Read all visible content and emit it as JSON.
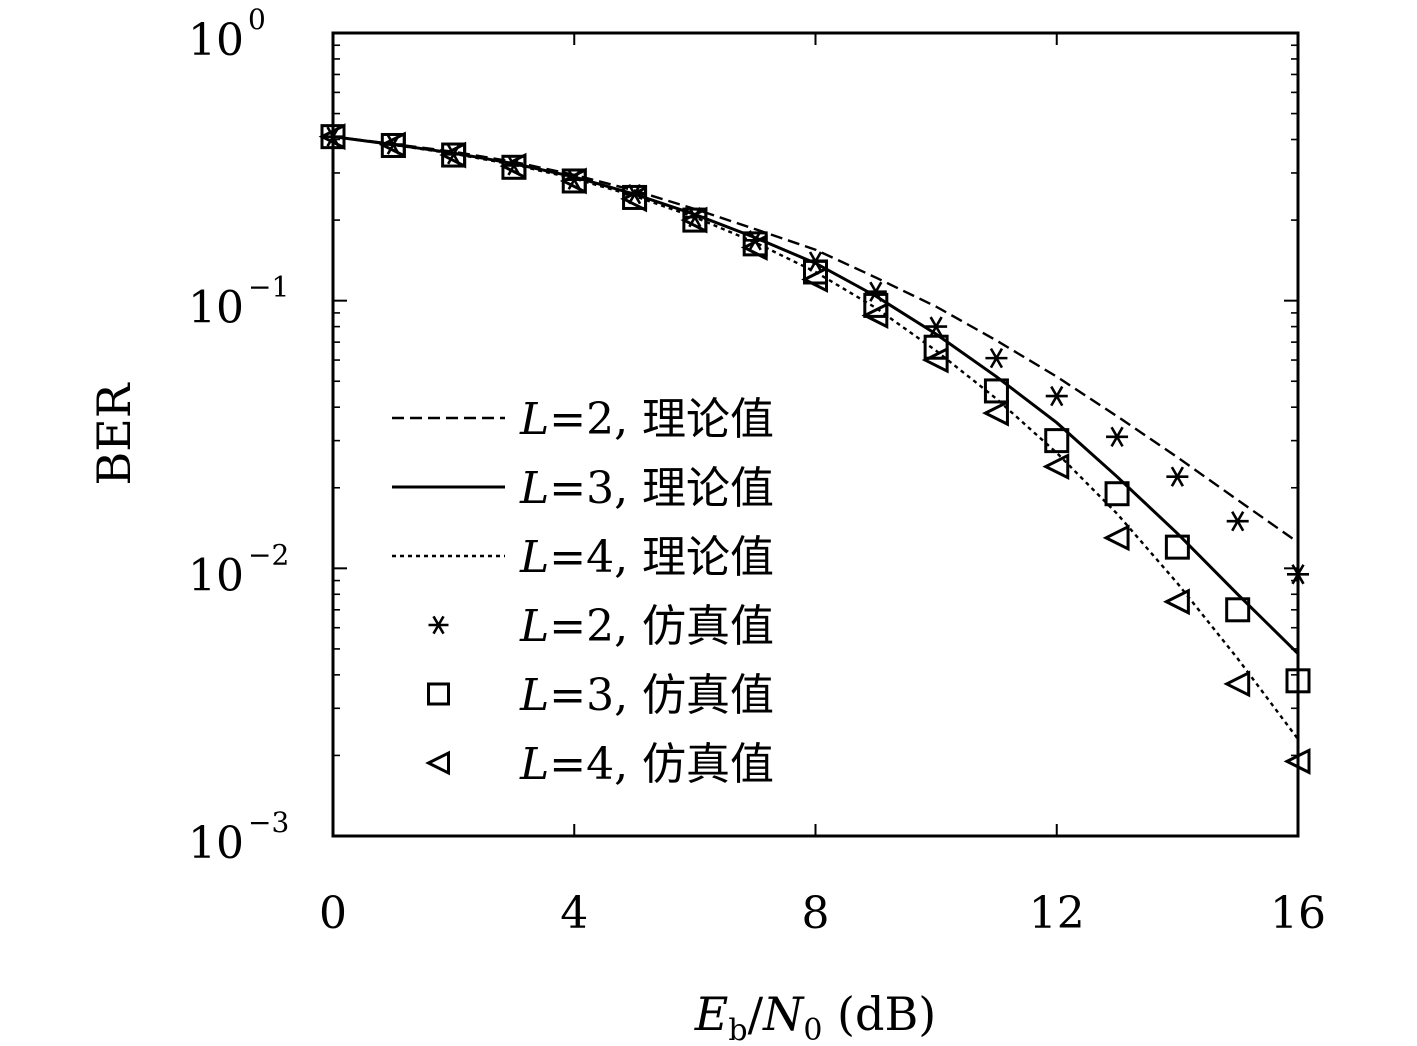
{
  "chart_data": {
    "type": "line",
    "title": "",
    "xlabel": {
      "e": "E",
      "e_sub": "b",
      "slash": "/",
      "n": "N",
      "n_sub": "0",
      "unit": " (dB)"
    },
    "ylabel": "BER",
    "xlim": [
      0,
      16
    ],
    "ylim": [
      0.001,
      1
    ],
    "yscale": "log",
    "x_ticks": [
      0,
      4,
      8,
      12,
      16
    ],
    "x_tick_labels": [
      "0",
      "4",
      "8",
      "12",
      "16"
    ],
    "y_ticks": [
      {
        "value": 1,
        "base": "10",
        "exp": "0"
      },
      {
        "value": 0.1,
        "base": "10",
        "exp": "−1"
      },
      {
        "value": 0.01,
        "base": "10",
        "exp": "−2"
      },
      {
        "value": 0.001,
        "base": "10",
        "exp": "−3"
      }
    ],
    "grid": false,
    "legend_position": "left",
    "series": [
      {
        "name": "L=2, 理论值",
        "var": "L",
        "eq": "=2, 理论值",
        "style": "dashed",
        "marker": "none",
        "x": [
          0,
          1,
          2,
          3,
          4,
          5,
          6,
          7,
          8,
          9,
          10,
          11,
          12,
          13,
          14,
          15,
          16
        ],
        "y": [
          0.41,
          0.385,
          0.36,
          0.33,
          0.295,
          0.258,
          0.22,
          0.185,
          0.155,
          0.122,
          0.095,
          0.071,
          0.052,
          0.037,
          0.026,
          0.018,
          0.0125
        ]
      },
      {
        "name": "L=3, 理论值",
        "var": "L",
        "eq": "=3, 理论值",
        "style": "solid",
        "marker": "none",
        "x": [
          0,
          1,
          2,
          3,
          4,
          5,
          6,
          7,
          8,
          9,
          10,
          11,
          12,
          13,
          14,
          15,
          16
        ],
        "y": [
          0.41,
          0.383,
          0.356,
          0.325,
          0.29,
          0.25,
          0.21,
          0.172,
          0.138,
          0.104,
          0.075,
          0.052,
          0.035,
          0.022,
          0.0135,
          0.008,
          0.0048
        ]
      },
      {
        "name": "L=4, 理论值",
        "var": "L",
        "eq": "=4, 理论值",
        "style": "dotted",
        "marker": "none",
        "x": [
          0,
          1,
          2,
          3,
          4,
          5,
          6,
          7,
          8,
          9,
          10,
          11,
          12,
          13,
          14,
          15,
          16
        ],
        "y": [
          0.41,
          0.382,
          0.354,
          0.322,
          0.286,
          0.246,
          0.205,
          0.165,
          0.128,
          0.094,
          0.065,
          0.043,
          0.027,
          0.016,
          0.0088,
          0.0046,
          0.0023
        ]
      },
      {
        "name": "L=2, 仿真值",
        "var": "L",
        "eq": "=2, 仿真值",
        "style": "none",
        "marker": "asterisk",
        "x": [
          0,
          1,
          2,
          3,
          4,
          5,
          6,
          7,
          8,
          9,
          10,
          11,
          12,
          13,
          14,
          15,
          16
        ],
        "y": [
          0.41,
          0.383,
          0.352,
          0.32,
          0.283,
          0.25,
          0.205,
          0.168,
          0.14,
          0.108,
          0.08,
          0.061,
          0.044,
          0.031,
          0.022,
          0.015,
          0.0095
        ]
      },
      {
        "name": "L=3, 仿真值",
        "var": "L",
        "eq": "=3, 仿真值",
        "style": "none",
        "marker": "square",
        "x": [
          0,
          1,
          2,
          3,
          4,
          5,
          6,
          7,
          8,
          9,
          10,
          11,
          12,
          13,
          14,
          15,
          16
        ],
        "y": [
          0.41,
          0.38,
          0.35,
          0.315,
          0.28,
          0.243,
          0.2,
          0.163,
          0.128,
          0.096,
          0.067,
          0.046,
          0.03,
          0.019,
          0.012,
          0.007,
          0.0038
        ]
      },
      {
        "name": "L=4, 仿真值",
        "var": "L",
        "eq": "=4, 仿真值",
        "style": "none",
        "marker": "triangle-left",
        "x": [
          0,
          1,
          2,
          3,
          4,
          5,
          6,
          7,
          8,
          9,
          10,
          11,
          12,
          13,
          14,
          15,
          16
        ],
        "y": [
          0.41,
          0.382,
          0.35,
          0.318,
          0.28,
          0.24,
          0.2,
          0.158,
          0.12,
          0.088,
          0.06,
          0.038,
          0.024,
          0.013,
          0.0075,
          0.0037,
          0.0019
        ]
      }
    ]
  }
}
